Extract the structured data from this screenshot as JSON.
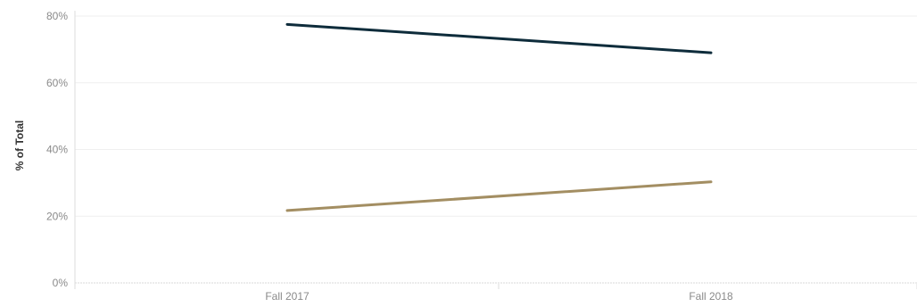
{
  "chart_data": {
    "type": "line",
    "x": [
      "Fall 2017",
      "Fall 2018"
    ],
    "series": [
      {
        "values": [
          77.5,
          69.0
        ],
        "color": "#0e2c3b"
      },
      {
        "values": [
          21.7,
          30.3
        ],
        "color": "#a38e62"
      }
    ],
    "ylabel": "% of Total",
    "xlabel": "",
    "title": "",
    "ylim": [
      0,
      80
    ],
    "yticks": [
      0,
      20,
      40,
      60,
      80
    ],
    "ytick_labels": [
      "0%",
      "20%",
      "40%",
      "60%",
      "80%"
    ],
    "grid": true,
    "legend": "none"
  }
}
